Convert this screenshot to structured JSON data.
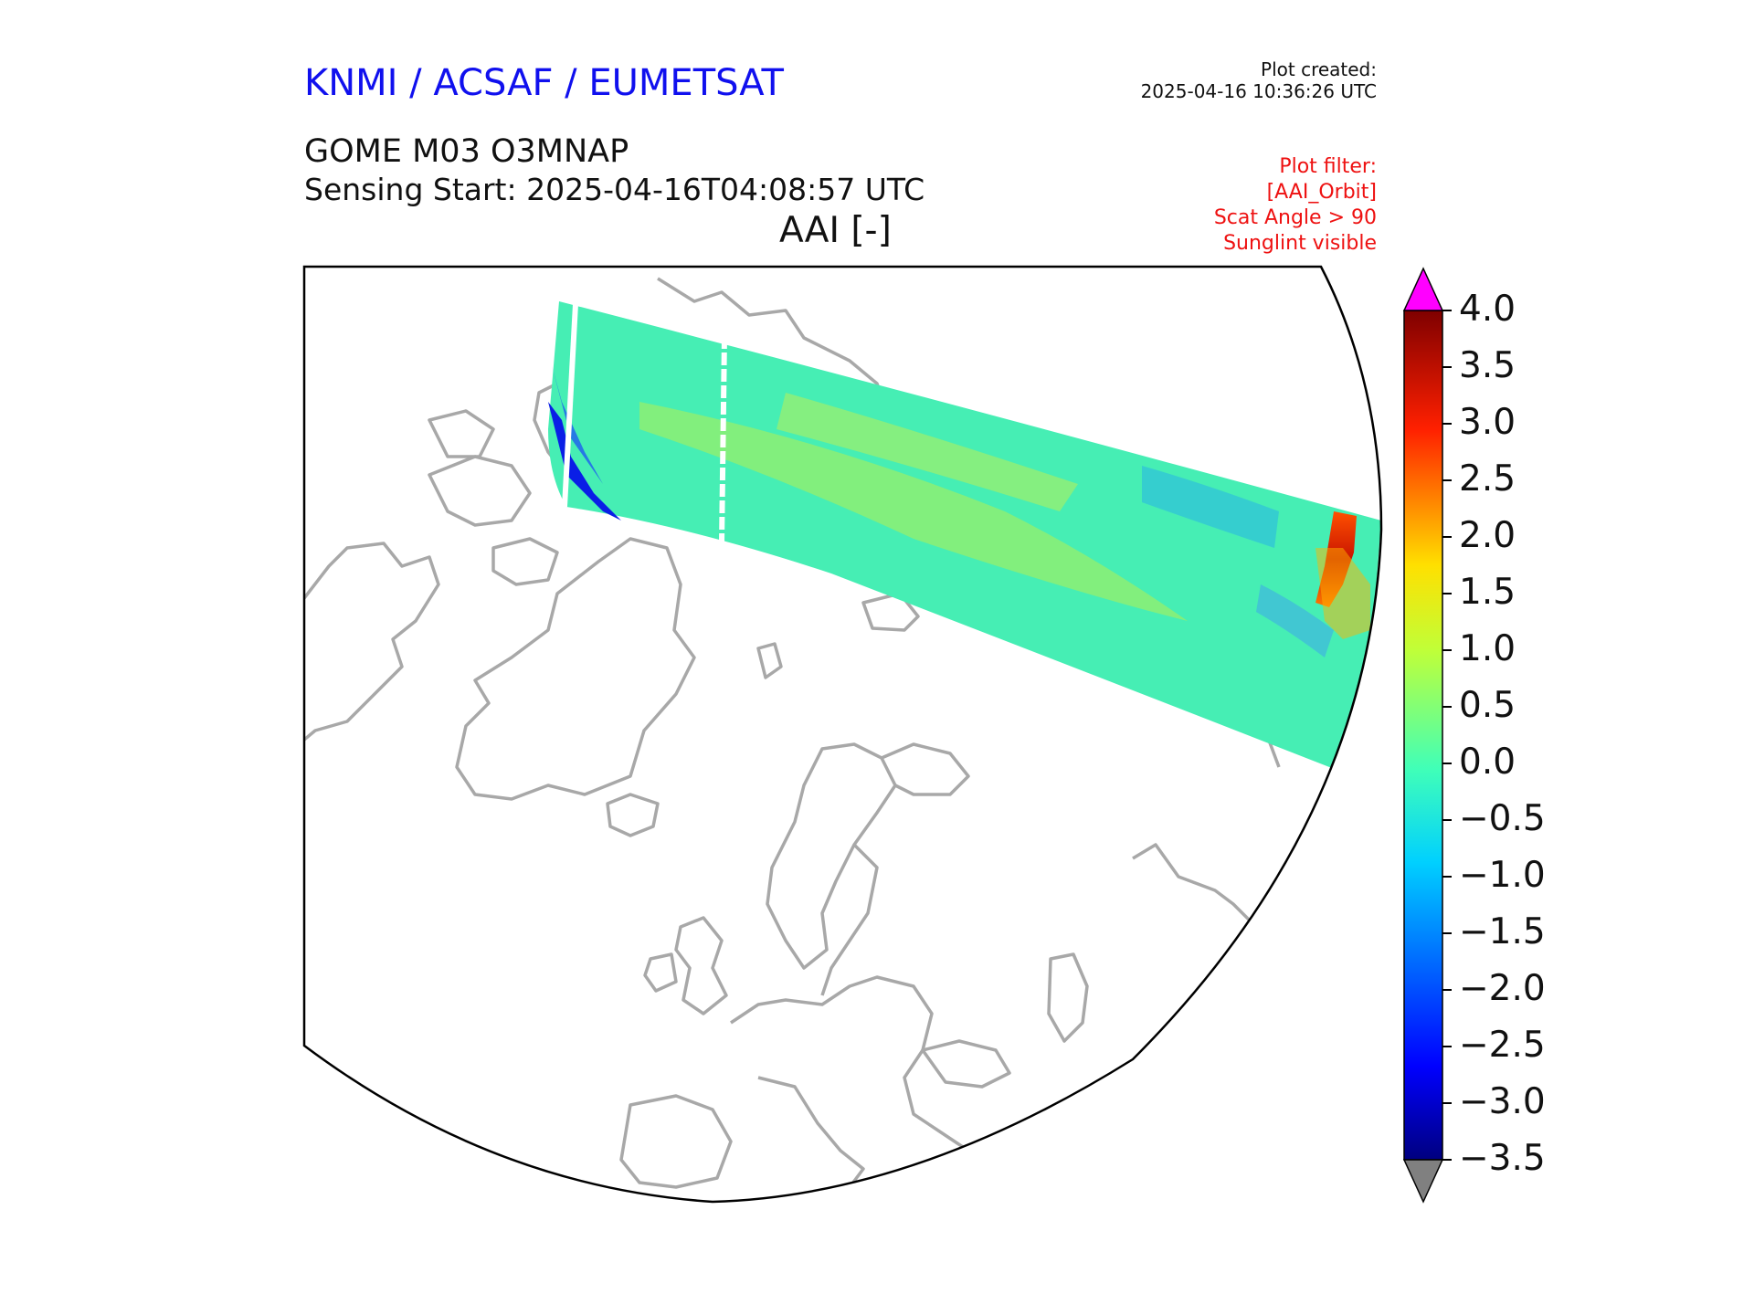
{
  "header": {
    "organisation": "KNMI / ACSAF / EUMETSAT",
    "plot_created_label": "Plot created:",
    "plot_created_time": "2025-04-16 10:36:26 UTC",
    "product": "GOME M03 O3MNAP",
    "sensing_start": "Sensing Start: 2025-04-16T04:08:57 UTC",
    "variable": "AAI [-]"
  },
  "filters": [
    "Plot filter:",
    "[AAI_Orbit]",
    "Scat Angle > 90",
    "Sunglint visible"
  ],
  "colorbar": {
    "ticks": [
      "4.0",
      "3.5",
      "3.0",
      "2.5",
      "2.0",
      "1.5",
      "1.0",
      "0.5",
      "0.0",
      "−0.5",
      "−1.0",
      "−1.5",
      "−2.0",
      "−2.5",
      "−3.0",
      "−3.5"
    ],
    "min": -3.5,
    "max": 4.0,
    "over_color": "#ff00ff",
    "under_color": "#808080"
  },
  "map": {
    "projection": "north-polar stereographic",
    "coastline_color": "#a8a8a8",
    "swath_background_color": "#46eeb4",
    "swath_features": [
      {
        "name": "aerosol plume",
        "value": 3.0
      },
      {
        "name": "low-value edge",
        "value": -2.5
      },
      {
        "name": "moderate positive streaks",
        "value": 1.0
      }
    ]
  }
}
